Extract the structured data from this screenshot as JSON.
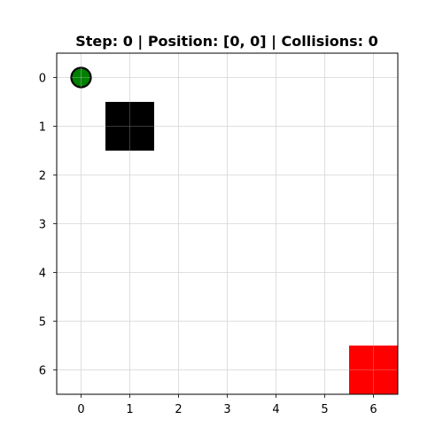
{
  "title": "Step: 0 | Position: [0, 0] | Collisions: 0",
  "grid": {
    "rows": 7,
    "cols": 7,
    "x_ticks": [
      "0",
      "1",
      "2",
      "3",
      "4",
      "5",
      "6"
    ],
    "y_ticks": [
      "0",
      "1",
      "2",
      "3",
      "4",
      "5",
      "6"
    ],
    "show_grid": true
  },
  "agent": {
    "row": 0,
    "col": 0,
    "fill_color": "#008000",
    "edge_color": "#000000"
  },
  "obstacles": [
    {
      "row": 1,
      "col": 1,
      "color": "#000000"
    }
  ],
  "goal": {
    "row": 6,
    "col": 6,
    "color": "#ff0000"
  },
  "colors": {
    "grid_line": "#d9d9d9",
    "axes_frame": "#000000"
  }
}
